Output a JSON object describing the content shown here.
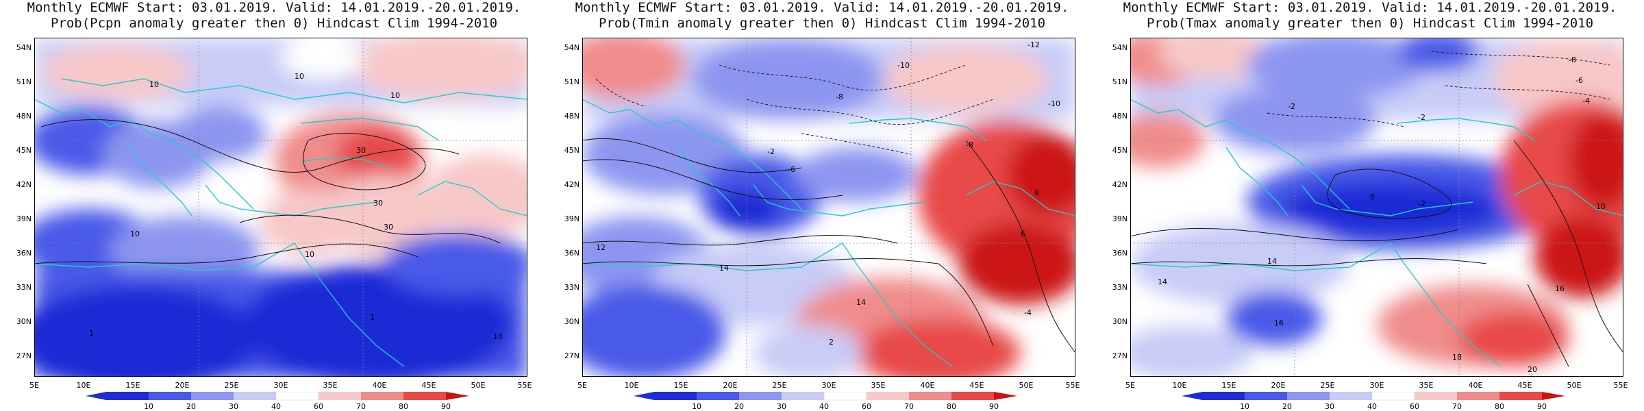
{
  "panels": [
    {
      "title_line1": "Monthly ECMWF Start: 03.01.2019. Valid: 14.01.2019.-20.01.2019.",
      "title_line2": "Prob(Pcpn anomaly greater then 0) Hindcast Clim 1994-2010",
      "variable": "Pcpn",
      "contour_labels": [
        "10",
        "10",
        "10",
        "30",
        "30",
        "30",
        "10",
        "10",
        "1",
        "1",
        "10"
      ]
    },
    {
      "title_line1": "Monthly ECMWF Start: 03.01.2019. Valid: 14.01.2019.-20.01.2019.",
      "title_line2": "Prob(Tmin anomaly greater then 0) Hindcast Clim 1994-2010",
      "variable": "Tmin",
      "contour_labels": [
        "-12",
        "-10",
        "-8",
        "-10",
        "-8",
        "-6",
        "-2",
        "12",
        "14",
        "14",
        "8",
        "2",
        "6",
        "-4"
      ]
    },
    {
      "title_line1": "Monthly ECMWF Start: 03.01.2019. Valid: 14.01.2019.-20.01.2019.",
      "title_line2": "Prob(Tmax anomaly greater then 0) Hindcast Clim 1994-2010",
      "variable": "Tmax",
      "contour_labels": [
        "-8",
        "-6",
        "-4",
        "-2",
        "-2",
        "0",
        "-2",
        "10",
        "14",
        "14",
        "16",
        "18",
        "16",
        "20"
      ]
    }
  ],
  "lat_labels": [
    "54N",
    "51N",
    "48N",
    "45N",
    "42N",
    "39N",
    "36N",
    "33N",
    "30N",
    "27N"
  ],
  "lon_labels": [
    "5E",
    "10E",
    "15E",
    "20E",
    "25E",
    "30E",
    "35E",
    "40E",
    "45E",
    "50E",
    "55E"
  ],
  "colorbar_labels": [
    "10",
    "20",
    "30",
    "40",
    "60",
    "70",
    "80",
    "90"
  ],
  "colorbar_colors": [
    "#1f2cd6",
    "#4a5ae8",
    "#8c96f0",
    "#c8ccf7",
    "#ffffff",
    "#f7c8c8",
    "#f08c8c",
    "#e84a4a",
    "#cc1212"
  ]
}
